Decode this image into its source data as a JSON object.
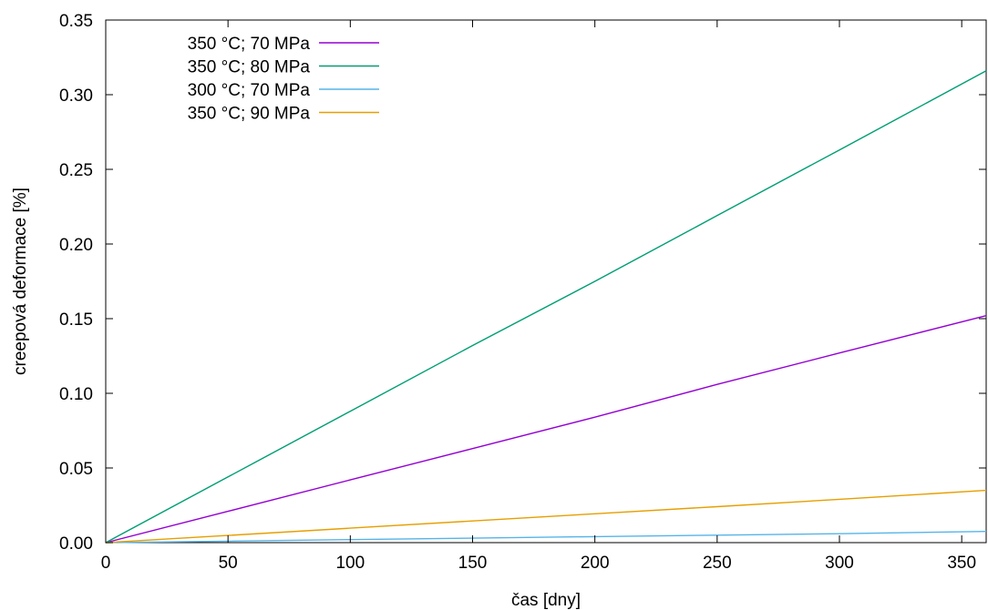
{
  "chart_data": {
    "type": "line",
    "title": "",
    "xlabel": "čas [dny]",
    "ylabel": "creepová deformace [%]",
    "xlim": [
      0,
      360
    ],
    "ylim": [
      0,
      0.35
    ],
    "xticks": [
      0,
      50,
      100,
      150,
      200,
      250,
      300,
      350
    ],
    "yticks": [
      0.0,
      0.05,
      0.1,
      0.15,
      0.2,
      0.25,
      0.3,
      0.35
    ],
    "xtick_labels": [
      "0",
      "50",
      "100",
      "150",
      "200",
      "250",
      "300",
      "350"
    ],
    "ytick_labels": [
      "0.00",
      "0.05",
      "0.10",
      "0.15",
      "0.20",
      "0.25",
      "0.30",
      "0.35"
    ],
    "grid": false,
    "legend_position": "top-left",
    "series": [
      {
        "name": "350 °C; 70 MPa",
        "color": "#9400d3",
        "x": [
          0,
          50,
          100,
          150,
          200,
          250,
          300,
          360
        ],
        "y": [
          0,
          0.021,
          0.042,
          0.063,
          0.084,
          0.106,
          0.127,
          0.152
        ]
      },
      {
        "name": "350 °C; 80 MPa",
        "color": "#009e73",
        "x": [
          0,
          50,
          100,
          150,
          200,
          250,
          300,
          360
        ],
        "y": [
          0,
          0.044,
          0.088,
          0.132,
          0.175,
          0.219,
          0.263,
          0.316
        ]
      },
      {
        "name": "300 °C; 70 MPa",
        "color": "#56b4e9",
        "x": [
          0,
          50,
          100,
          150,
          200,
          250,
          300,
          360
        ],
        "y": [
          0,
          0.001,
          0.002,
          0.003,
          0.004,
          0.005,
          0.006,
          0.0075
        ]
      },
      {
        "name": "350 °C; 90 MPa",
        "color": "#e69f00",
        "x": [
          0,
          50,
          100,
          150,
          200,
          250,
          300,
          360
        ],
        "y": [
          0,
          0.0048,
          0.0097,
          0.0145,
          0.0193,
          0.0241,
          0.029,
          0.035
        ]
      }
    ]
  }
}
